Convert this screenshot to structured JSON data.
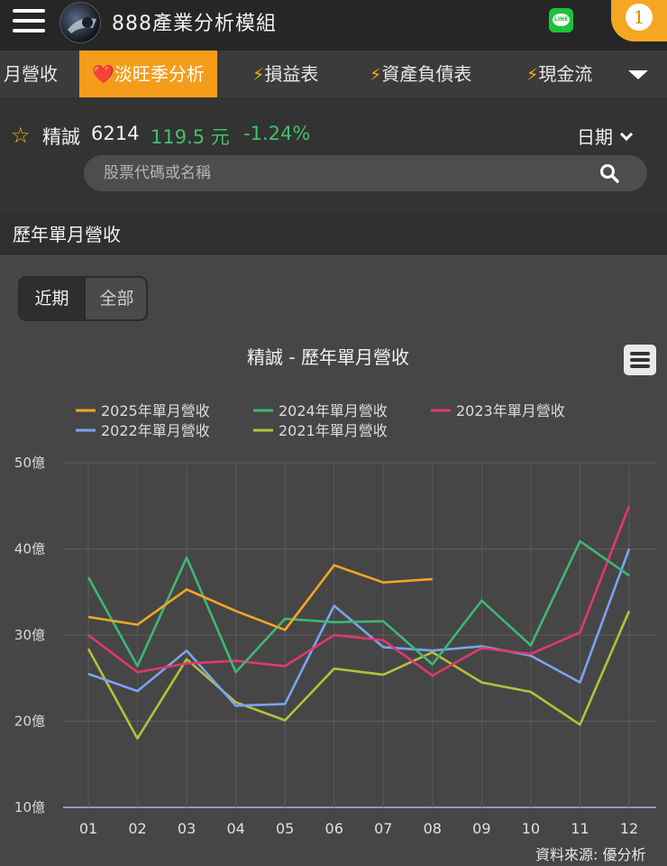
{
  "header": {
    "app_title": "888產業分析模組",
    "line_icon": "LINE",
    "notification_count": "1"
  },
  "tabs": [
    {
      "label": "月營收",
      "icon": "",
      "active": false
    },
    {
      "label": "淡旺季分析",
      "icon": "❤️",
      "active": true
    },
    {
      "label": "損益表",
      "icon": "⚡",
      "active": false
    },
    {
      "label": "資產負債表",
      "icon": "⚡",
      "active": false
    },
    {
      "label": "現金流",
      "icon": "⚡",
      "active": false
    }
  ],
  "stock": {
    "name": "精誠",
    "code": "6214",
    "price": "119.5 元",
    "change": "-1.24%",
    "date_label": "日期"
  },
  "search": {
    "placeholder": "股票代碼或名稱"
  },
  "section": {
    "title": "歷年單月營收"
  },
  "range_toggle": {
    "recent": "近期",
    "all": "全部",
    "selected": "近期"
  },
  "colors": {
    "accent": "#f59d1b",
    "price_green": "#3fc26b",
    "line_green": "#1ec337"
  },
  "credit": "資料來源: 優分析",
  "chart_data": {
    "type": "line",
    "title": "精誠 - 歷年單月營收",
    "categories": [
      "01",
      "02",
      "03",
      "04",
      "05",
      "06",
      "07",
      "08",
      "09",
      "10",
      "11",
      "12"
    ],
    "y_ticks": [
      "10億",
      "20億",
      "30億",
      "40億",
      "50億"
    ],
    "ylim": [
      10,
      50
    ],
    "grid": true,
    "legend_placement": "top",
    "series": [
      {
        "name": "2025年單月營收",
        "color": "#f5a623",
        "values": [
          32.1,
          31.2,
          35.3,
          32.8,
          30.6,
          38.1,
          36.1,
          36.5,
          null,
          null,
          null,
          null
        ]
      },
      {
        "name": "2024年單月營收",
        "color": "#3db873",
        "values": [
          36.7,
          26.4,
          39.0,
          25.7,
          31.9,
          31.5,
          31.6,
          26.6,
          34.0,
          28.8,
          40.9,
          36.9
        ]
      },
      {
        "name": "2023年單月營收",
        "color": "#e0386e",
        "values": [
          30.0,
          25.7,
          26.7,
          27.0,
          26.4,
          30.0,
          29.4,
          25.3,
          28.5,
          27.8,
          30.3,
          45.0
        ]
      },
      {
        "name": "2022年單月營收",
        "color": "#7aa3f0",
        "values": [
          25.5,
          23.5,
          28.2,
          21.8,
          22.0,
          33.4,
          28.6,
          28.2,
          28.7,
          27.6,
          24.5,
          40.0
        ]
      },
      {
        "name": "2021年單月營收",
        "color": "#b2c23a",
        "values": [
          28.4,
          18.0,
          27.2,
          22.2,
          20.1,
          26.1,
          25.4,
          28.0,
          24.5,
          23.4,
          19.6,
          32.8
        ]
      }
    ]
  }
}
